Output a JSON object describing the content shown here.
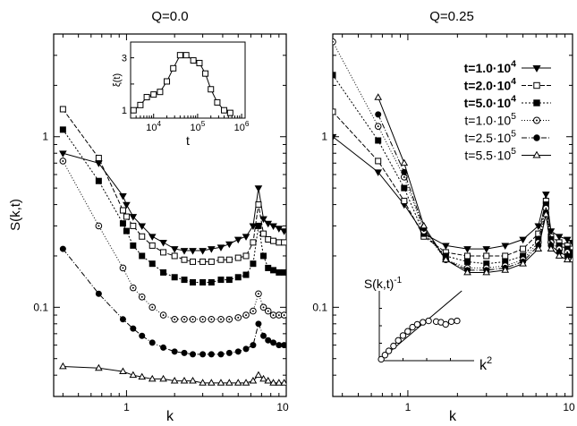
{
  "chart_data": [
    {
      "type": "line",
      "title": "Q=0.0",
      "xlabel": "k",
      "ylabel": "S(k,t)",
      "xscale": "log",
      "yscale": "log",
      "xlim": [
        0.35,
        10
      ],
      "ylim": [
        0.03,
        4
      ],
      "xticks": [
        {
          "v": 1,
          "label": "1"
        },
        {
          "v": 10,
          "label": "10"
        }
      ],
      "yticks": [
        {
          "v": 0.1,
          "label": "0.1"
        },
        {
          "v": 1,
          "label": "1"
        }
      ],
      "series": [
        {
          "name": "t=1.0·10^4",
          "marker": "triangle-down",
          "filled": true,
          "dash": "",
          "x": [
            0.4,
            0.67,
            0.95,
            1.0,
            1.1,
            1.25,
            1.45,
            1.7,
            2.0,
            2.3,
            2.6,
            3.0,
            3.4,
            3.9,
            4.4,
            5.0,
            5.6,
            6.2,
            6.7,
            7.2,
            7.7,
            8.3,
            9.0,
            9.7
          ],
          "y": [
            0.8,
            0.7,
            0.45,
            0.4,
            0.34,
            0.3,
            0.26,
            0.24,
            0.22,
            0.215,
            0.215,
            0.215,
            0.22,
            0.225,
            0.235,
            0.25,
            0.26,
            0.3,
            0.5,
            0.33,
            0.31,
            0.3,
            0.29,
            0.28
          ]
        },
        {
          "name": "t=2.0·10^4",
          "marker": "square",
          "filled": false,
          "dash": "5,2",
          "x": [
            0.4,
            0.67,
            0.95,
            1.0,
            1.1,
            1.25,
            1.45,
            1.7,
            2.0,
            2.3,
            2.6,
            3.0,
            3.4,
            3.9,
            4.4,
            5.0,
            5.6,
            6.2,
            6.7,
            7.2,
            7.7,
            8.3,
            9.0,
            9.7
          ],
          "y": [
            1.45,
            0.75,
            0.37,
            0.34,
            0.3,
            0.26,
            0.23,
            0.21,
            0.2,
            0.19,
            0.185,
            0.185,
            0.185,
            0.19,
            0.19,
            0.195,
            0.2,
            0.24,
            0.4,
            0.27,
            0.25,
            0.245,
            0.24,
            0.24
          ]
        },
        {
          "name": "t=5.0·10^4",
          "marker": "square",
          "filled": true,
          "dash": "2,2",
          "x": [
            0.4,
            0.67,
            0.95,
            1.0,
            1.1,
            1.25,
            1.45,
            1.7,
            2.0,
            2.3,
            2.6,
            3.0,
            3.4,
            3.9,
            4.4,
            5.0,
            5.6,
            6.2,
            6.7,
            7.2,
            7.7,
            8.3,
            9.0,
            9.7
          ],
          "y": [
            1.1,
            0.55,
            0.31,
            0.28,
            0.23,
            0.2,
            0.18,
            0.16,
            0.15,
            0.145,
            0.14,
            0.14,
            0.14,
            0.145,
            0.145,
            0.15,
            0.155,
            0.18,
            0.3,
            0.2,
            0.17,
            0.165,
            0.16,
            0.16
          ]
        },
        {
          "name": "t=1.0·10^5",
          "marker": "circle-dot",
          "filled": false,
          "dash": "1,2",
          "x": [
            0.4,
            0.67,
            0.95,
            1.1,
            1.25,
            1.45,
            1.7,
            2.0,
            2.3,
            2.6,
            3.0,
            3.4,
            3.9,
            4.4,
            5.0,
            5.6,
            6.2,
            6.7,
            7.2,
            7.7,
            8.3,
            9.0,
            9.7
          ],
          "y": [
            0.72,
            0.3,
            0.17,
            0.13,
            0.115,
            0.1,
            0.09,
            0.085,
            0.085,
            0.085,
            0.085,
            0.085,
            0.085,
            0.085,
            0.087,
            0.09,
            0.095,
            0.12,
            0.1,
            0.095,
            0.09,
            0.09,
            0.09
          ]
        },
        {
          "name": "t=2.5·10^5",
          "marker": "circle",
          "filled": true,
          "dash": "6,2,1,2",
          "x": [
            0.4,
            0.67,
            0.95,
            1.1,
            1.25,
            1.45,
            1.7,
            2.0,
            2.3,
            2.6,
            3.0,
            3.4,
            3.9,
            4.4,
            5.0,
            5.6,
            6.2,
            6.7,
            7.2,
            7.7,
            8.3,
            9.0,
            9.7
          ],
          "y": [
            0.22,
            0.12,
            0.085,
            0.075,
            0.068,
            0.062,
            0.058,
            0.055,
            0.054,
            0.053,
            0.053,
            0.053,
            0.053,
            0.054,
            0.055,
            0.057,
            0.06,
            0.08,
            0.068,
            0.064,
            0.062,
            0.06,
            0.06
          ]
        },
        {
          "name": "t=5.5·10^5",
          "marker": "triangle-up",
          "filled": false,
          "dash": "",
          "x": [
            0.4,
            0.67,
            0.95,
            1.1,
            1.25,
            1.45,
            1.7,
            2.0,
            2.3,
            2.6,
            3.0,
            3.4,
            3.9,
            4.4,
            5.0,
            5.6,
            6.2,
            6.7,
            7.2,
            7.7,
            8.3,
            9.0,
            9.7
          ],
          "y": [
            0.045,
            0.044,
            0.042,
            0.04,
            0.039,
            0.038,
            0.038,
            0.037,
            0.037,
            0.037,
            0.036,
            0.036,
            0.036,
            0.036,
            0.036,
            0.036,
            0.037,
            0.04,
            0.038,
            0.037,
            0.036,
            0.036,
            0.036
          ]
        }
      ],
      "inset": {
        "ylabel": "ξ(t)",
        "xlabel": "t",
        "xscale": "log",
        "xlim": [
          3000,
          1200000
        ],
        "ylim": [
          0.7,
          3.6
        ],
        "xticks": [
          {
            "v": 10000,
            "label": "10^4"
          },
          {
            "v": 100000,
            "label": "10^5"
          },
          {
            "v": 1000000,
            "label": "10^6"
          }
        ],
        "yticks": [
          {
            "v": 1,
            "label": "1"
          },
          {
            "v": 3,
            "label": "3"
          }
        ],
        "x": [
          3500,
          5000,
          7000,
          10000,
          14000,
          20000,
          28000,
          40000,
          55000,
          80000,
          110000,
          150000,
          200000,
          280000,
          400000,
          550000
        ],
        "y": [
          1.0,
          1.2,
          1.5,
          1.6,
          1.7,
          2.1,
          2.6,
          3.1,
          3.1,
          2.9,
          2.8,
          2.4,
          1.8,
          1.3,
          1.0,
          0.9
        ]
      }
    },
    {
      "type": "line",
      "title": "Q=0.25",
      "xlabel": "k",
      "ylabel": "",
      "xscale": "log",
      "yscale": "log",
      "xlim": [
        0.35,
        10
      ],
      "ylim": [
        0.03,
        4
      ],
      "xticks": [
        {
          "v": 1,
          "label": "1"
        },
        {
          "v": 10,
          "label": "10"
        }
      ],
      "yticks": [
        {
          "v": 0.1,
          "label": "0.1"
        },
        {
          "v": 1,
          "label": "1"
        }
      ],
      "legend": {
        "position": "top-right",
        "entries": [
          "t=1.0·10^4",
          "t=2.0·10^4",
          "t=5.0·10^4",
          "t=1.0·10^5",
          "t=2.5·10^5",
          "t=5.5·10^5"
        ]
      },
      "series": [
        {
          "name": "t=1.0·10^4",
          "marker": "triangle-down",
          "filled": true,
          "dash": "",
          "x": [
            0.35,
            0.66,
            0.95,
            1.25,
            1.7,
            2.3,
            3.0,
            3.9,
            5.0,
            6.2,
            6.9,
            7.4,
            8.3,
            9.3,
            10
          ],
          "y": [
            1.0,
            0.62,
            0.4,
            0.27,
            0.23,
            0.22,
            0.22,
            0.23,
            0.25,
            0.3,
            0.46,
            0.28,
            0.26,
            0.25,
            0.24
          ]
        },
        {
          "name": "t=2.0·10^4",
          "marker": "square",
          "filled": false,
          "dash": "5,2",
          "x": [
            0.35,
            0.66,
            0.95,
            1.25,
            1.7,
            2.3,
            3.0,
            3.9,
            5.0,
            6.2,
            6.9,
            7.4,
            8.3,
            9.3,
            10
          ],
          "y": [
            1.4,
            0.72,
            0.42,
            0.26,
            0.21,
            0.2,
            0.2,
            0.2,
            0.22,
            0.27,
            0.42,
            0.26,
            0.24,
            0.23,
            0.22
          ]
        },
        {
          "name": "t=5.0·10^4",
          "marker": "square",
          "filled": true,
          "dash": "2,2",
          "x": [
            0.35,
            0.66,
            0.95,
            1.25,
            1.7,
            2.3,
            3.0,
            3.9,
            5.0,
            6.2,
            6.9,
            7.4,
            8.3,
            9.3,
            10
          ],
          "y": [
            2.3,
            0.95,
            0.5,
            0.27,
            0.2,
            0.185,
            0.18,
            0.185,
            0.2,
            0.25,
            0.4,
            0.25,
            0.23,
            0.22,
            0.21
          ]
        },
        {
          "name": "t=1.0·10^5",
          "marker": "circle-dot",
          "filled": false,
          "dash": "1,2",
          "x": [
            0.35,
            0.66,
            0.95,
            1.25,
            1.7,
            2.3,
            3.0,
            3.9,
            5.0,
            6.2,
            6.9,
            7.4,
            8.3,
            9.3,
            10
          ],
          "y": [
            3.6,
            1.15,
            0.58,
            0.28,
            0.19,
            0.17,
            0.17,
            0.175,
            0.19,
            0.24,
            0.38,
            0.24,
            0.22,
            0.21,
            0.2
          ]
        },
        {
          "name": "t=2.5·10^5",
          "marker": "circle",
          "filled": true,
          "dash": "6,2,1,2",
          "x": [
            0.66,
            0.95,
            1.25,
            1.7,
            2.3,
            3.0,
            3.9,
            5.0,
            6.2,
            6.9,
            7.4,
            8.3,
            9.3,
            10
          ],
          "y": [
            1.35,
            0.62,
            0.29,
            0.19,
            0.165,
            0.165,
            0.17,
            0.185,
            0.23,
            0.36,
            0.23,
            0.21,
            0.2,
            0.2
          ]
        },
        {
          "name": "t=5.5·10^5",
          "marker": "triangle-up",
          "filled": false,
          "dash": "",
          "x": [
            0.66,
            0.95,
            1.25,
            1.7,
            2.3,
            3.0,
            3.9,
            5.0,
            6.2,
            6.9,
            7.4,
            8.3,
            9.3,
            10
          ],
          "y": [
            1.7,
            0.7,
            0.3,
            0.19,
            0.16,
            0.16,
            0.165,
            0.18,
            0.22,
            0.35,
            0.22,
            0.2,
            0.19,
            0.19
          ]
        }
      ],
      "inset": {
        "ylabel": "S(k,t)",
        "ylabel_sup": "-1",
        "xlabel": "k",
        "xlabel_sup": "2",
        "x": [
          0.02,
          0.06,
          0.1,
          0.15,
          0.2,
          0.25,
          0.3,
          0.35,
          0.4,
          0.46,
          0.52,
          0.6,
          0.65,
          0.7,
          0.76,
          0.82
        ],
        "y": [
          0.02,
          0.08,
          0.14,
          0.21,
          0.29,
          0.36,
          0.42,
          0.48,
          0.52,
          0.55,
          0.57,
          0.56,
          0.55,
          0.52,
          0.56,
          0.57
        ],
        "fit": {
          "x": [
            0,
            1
          ],
          "y": [
            0,
            1.15
          ]
        }
      }
    }
  ]
}
